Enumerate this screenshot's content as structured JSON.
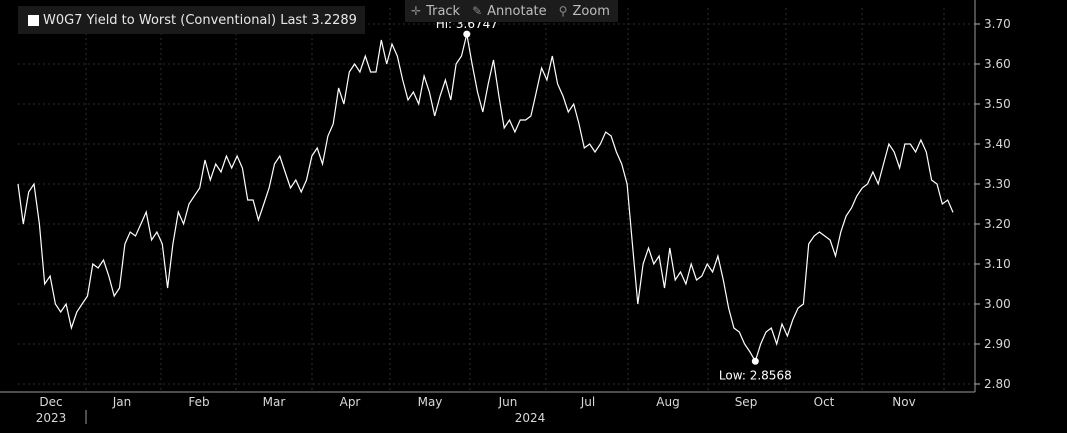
{
  "legend": {
    "swatch_color": "#ffffff",
    "label": "W0G7 Yield to Worst (Conventional) Last 3.2289"
  },
  "toolbar": {
    "track_label": "Track",
    "annotate_label": "Annotate",
    "zoom_label": "Zoom",
    "track_icon": "crosshair-icon",
    "annotate_icon": "pencil-icon",
    "zoom_icon": "magnifier-icon"
  },
  "chart_data": {
    "type": "line",
    "line_color": "#ffffff",
    "background": "#000000",
    "ylim": [
      2.78,
      3.74
    ],
    "y_ticks": [
      "2.80",
      "2.90",
      "3.00",
      "3.10",
      "3.20",
      "3.30",
      "3.40",
      "3.50",
      "3.60",
      "3.70"
    ],
    "x_labels": [
      "Dec",
      "Jan",
      "Feb",
      "Mar",
      "Apr",
      "May",
      "Jun",
      "Jul",
      "Aug",
      "Sep",
      "Oct",
      "Nov"
    ],
    "year_labels": [
      "2023",
      "2024"
    ],
    "last_value": 3.2289,
    "high": {
      "label": "Hi: 3.6747",
      "value": 3.6747
    },
    "low": {
      "label": "Low: 2.8568",
      "value": 2.8568
    },
    "series": [
      {
        "values": [
          3.3,
          3.2,
          3.28,
          3.3,
          3.2,
          3.05,
          3.07,
          3.0,
          2.98,
          3.0,
          2.94,
          2.98,
          3.0,
          3.02,
          3.1,
          3.09,
          3.11,
          3.07,
          3.02,
          3.04,
          3.15,
          3.18,
          3.17,
          3.2,
          3.23,
          3.16,
          3.18,
          3.15,
          3.04,
          3.15,
          3.23,
          3.2,
          3.25,
          3.27,
          3.29,
          3.36,
          3.31,
          3.35,
          3.33,
          3.37,
          3.34,
          3.37,
          3.34,
          3.26,
          3.26,
          3.21,
          3.25,
          3.29,
          3.35,
          3.37,
          3.33,
          3.29,
          3.31,
          3.28,
          3.31,
          3.37,
          3.39,
          3.35,
          3.42,
          3.45,
          3.54,
          3.5,
          3.58,
          3.6,
          3.58,
          3.62,
          3.58,
          3.58,
          3.66,
          3.6,
          3.65,
          3.62,
          3.56,
          3.51,
          3.53,
          3.5,
          3.57,
          3.53,
          3.47,
          3.52,
          3.56,
          3.51,
          3.6,
          3.62,
          3.6747,
          3.6,
          3.53,
          3.48,
          3.55,
          3.61,
          3.52,
          3.44,
          3.46,
          3.43,
          3.46,
          3.46,
          3.47,
          3.53,
          3.59,
          3.56,
          3.62,
          3.55,
          3.52,
          3.48,
          3.5,
          3.45,
          3.39,
          3.4,
          3.38,
          3.4,
          3.43,
          3.42,
          3.38,
          3.35,
          3.3,
          3.15,
          3.0,
          3.1,
          3.14,
          3.1,
          3.12,
          3.04,
          3.14,
          3.06,
          3.08,
          3.05,
          3.1,
          3.06,
          3.07,
          3.1,
          3.08,
          3.12,
          3.06,
          2.99,
          2.94,
          2.93,
          2.9,
          2.88,
          2.8568,
          2.9,
          2.93,
          2.94,
          2.9,
          2.95,
          2.92,
          2.96,
          2.99,
          3.0,
          3.15,
          3.17,
          3.18,
          3.17,
          3.16,
          3.12,
          3.18,
          3.22,
          3.24,
          3.27,
          3.29,
          3.3,
          3.33,
          3.3,
          3.35,
          3.4,
          3.38,
          3.34,
          3.4,
          3.4,
          3.38,
          3.41,
          3.38,
          3.31,
          3.3,
          3.25,
          3.26,
          3.2289
        ]
      }
    ]
  }
}
